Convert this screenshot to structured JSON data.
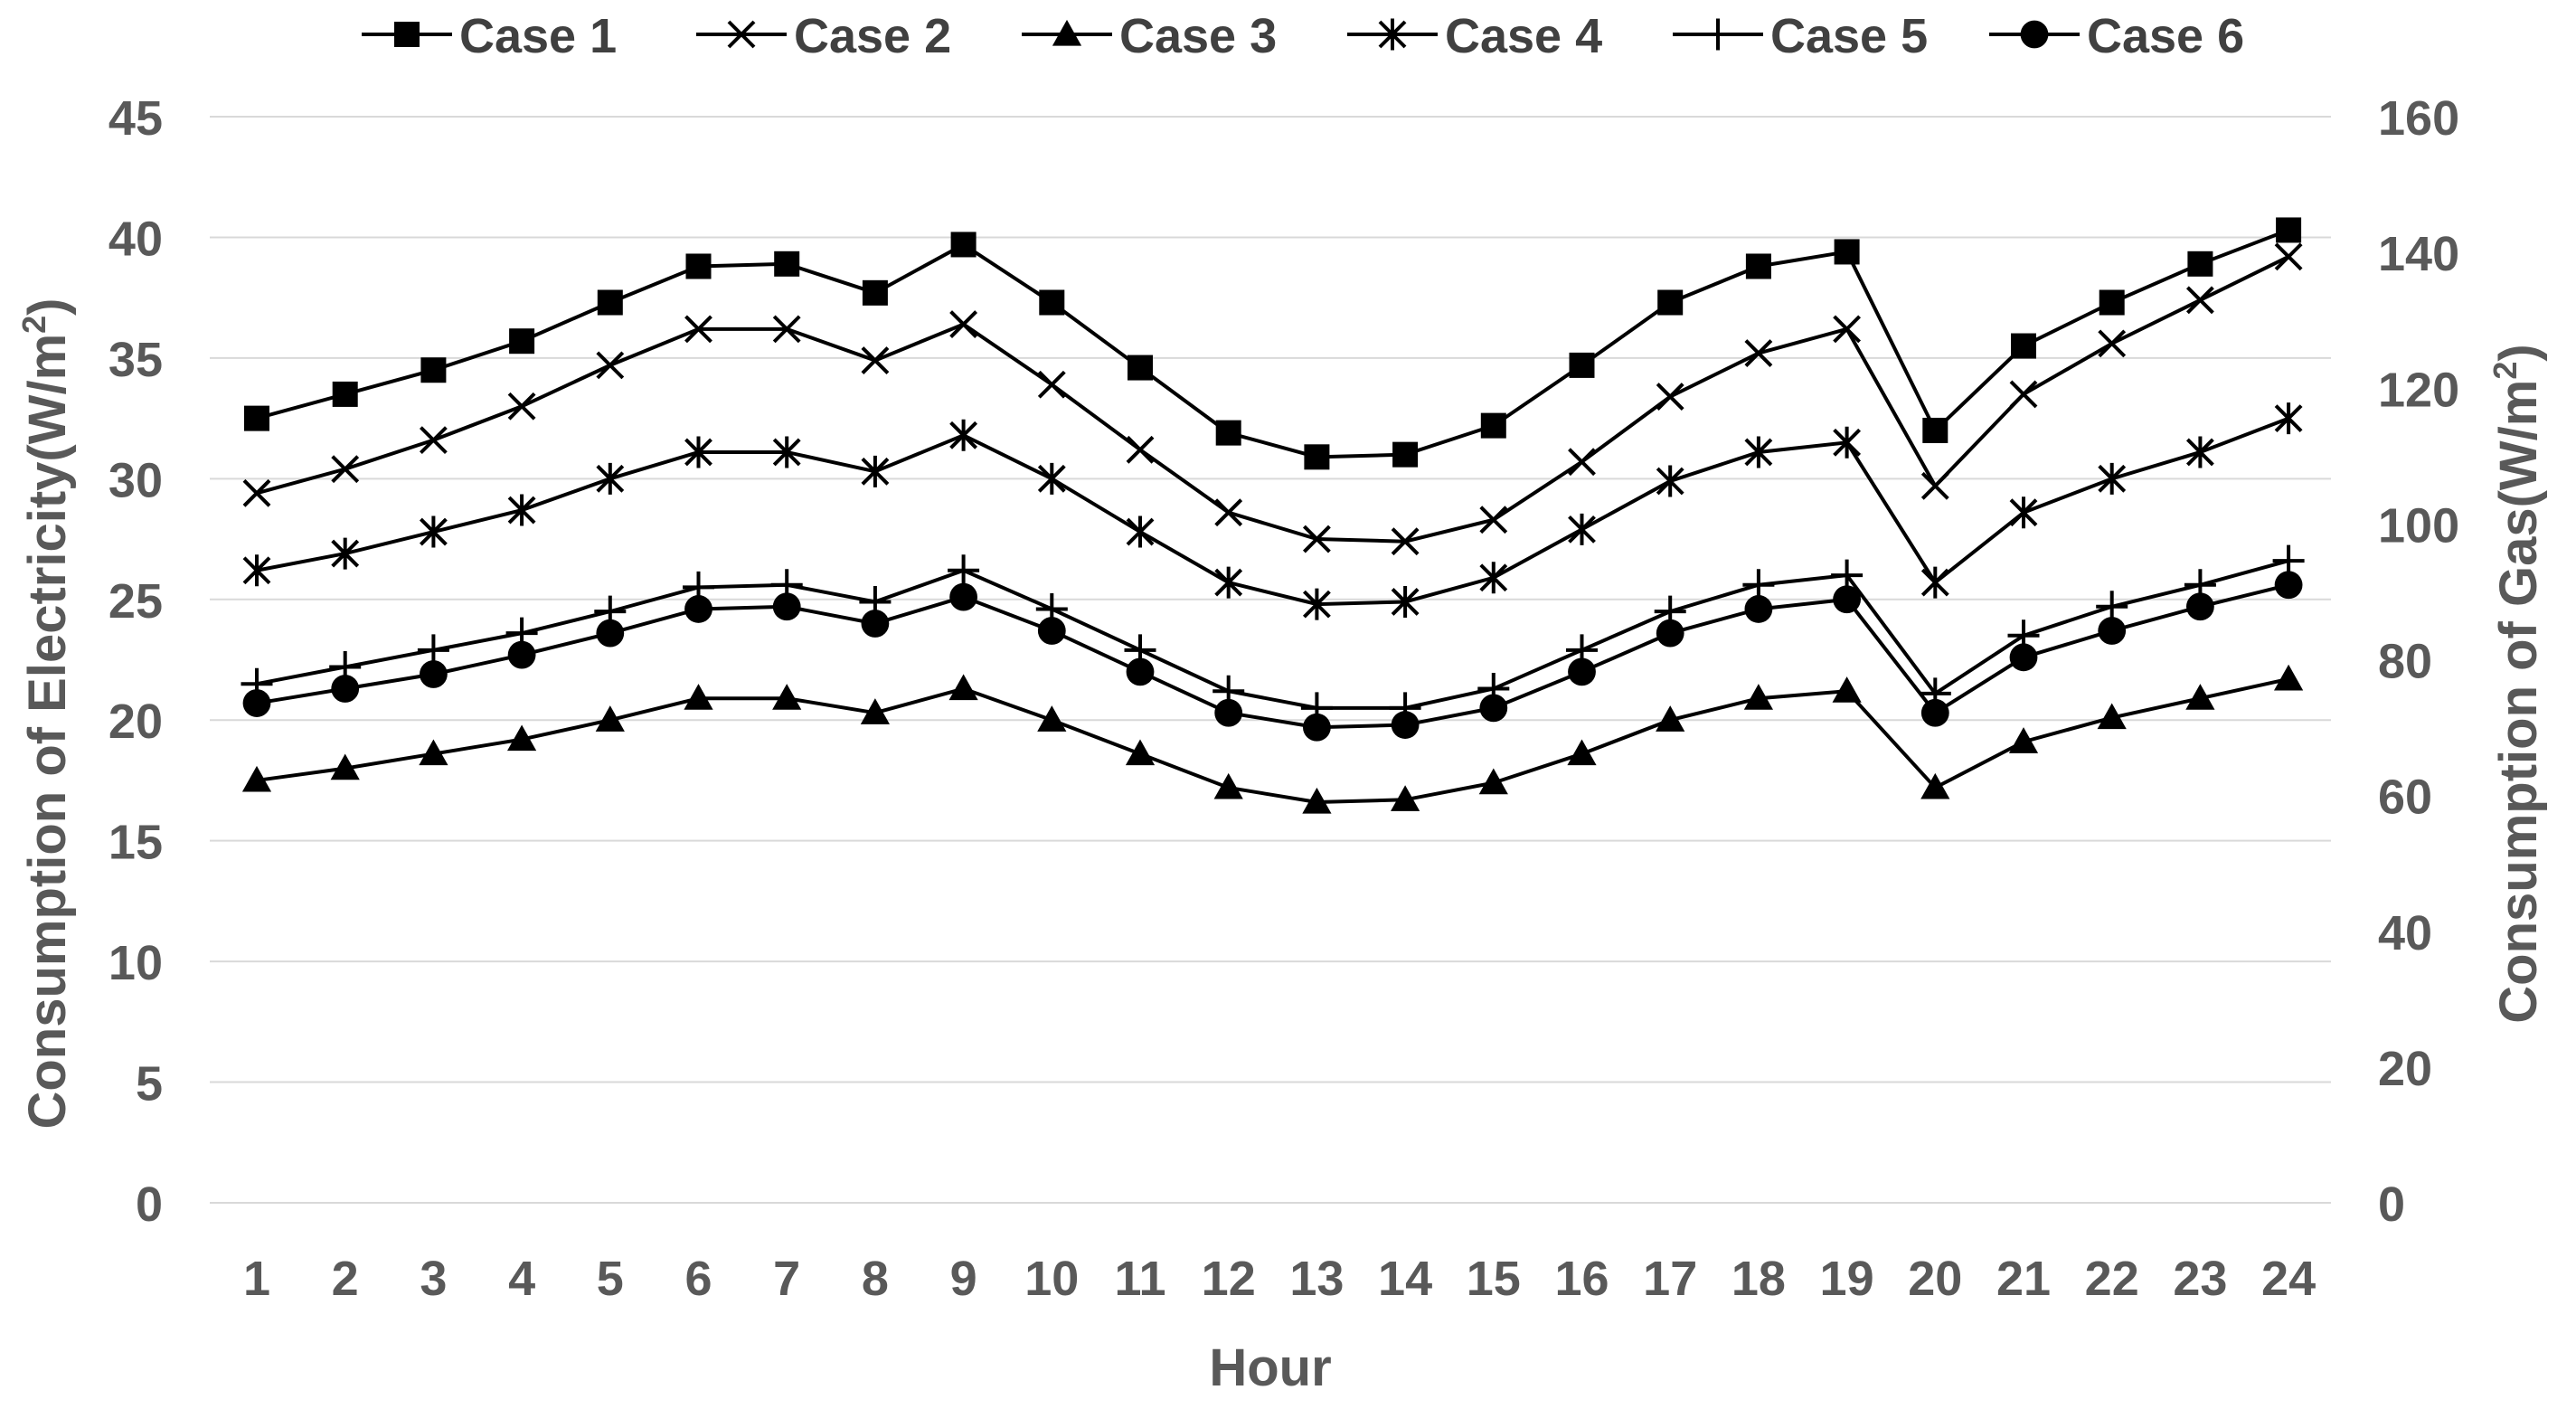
{
  "chart_data": {
    "type": "line",
    "title": "",
    "xlabel": "Hour",
    "ylabel_left": "Consumption of Electricity(W/m",
    "ylabel_left_sup": "2",
    "ylabel_left_tail": ")",
    "ylabel_right": "Consumption of Gas(W/m",
    "ylabel_right_sup": "2",
    "ylabel_right_tail": ")",
    "x": [
      1,
      2,
      3,
      4,
      5,
      6,
      7,
      8,
      9,
      10,
      11,
      12,
      13,
      14,
      15,
      16,
      17,
      18,
      19,
      20,
      21,
      22,
      23,
      24
    ],
    "y_left_lim": [
      0,
      45
    ],
    "y_left_ticks": [
      0,
      5,
      10,
      15,
      20,
      25,
      30,
      35,
      40,
      45
    ],
    "y_right_lim": [
      0,
      160
    ],
    "y_right_ticks": [
      0,
      20,
      40,
      60,
      80,
      100,
      120,
      140,
      160
    ],
    "grid": true,
    "legend_position": "top",
    "series": [
      {
        "name": "Case 1",
        "marker": "square",
        "values": [
          32.5,
          33.5,
          34.5,
          35.7,
          37.3,
          38.8,
          38.9,
          37.7,
          39.7,
          37.3,
          34.6,
          31.9,
          30.9,
          31.0,
          32.2,
          34.7,
          37.3,
          38.8,
          39.4,
          32.0,
          35.5,
          37.3,
          38.9,
          40.3
        ]
      },
      {
        "name": "Case 2",
        "marker": "x",
        "values": [
          29.4,
          30.4,
          31.6,
          33.0,
          34.7,
          36.2,
          36.2,
          34.9,
          36.4,
          33.9,
          31.2,
          28.6,
          27.5,
          27.4,
          28.3,
          30.7,
          33.4,
          35.2,
          36.2,
          29.7,
          33.5,
          35.6,
          37.4,
          39.2
        ]
      },
      {
        "name": "Case 3",
        "marker": "triangle",
        "values": [
          17.5,
          18.0,
          18.6,
          19.2,
          20.0,
          20.9,
          20.9,
          20.3,
          21.3,
          20.0,
          18.6,
          17.2,
          16.6,
          16.7,
          17.4,
          18.6,
          20.0,
          20.9,
          21.2,
          17.2,
          19.1,
          20.1,
          20.9,
          21.7
        ]
      },
      {
        "name": "Case 4",
        "marker": "asterisk",
        "values": [
          26.2,
          26.9,
          27.8,
          28.7,
          30.0,
          31.1,
          31.1,
          30.3,
          31.8,
          30.0,
          27.8,
          25.7,
          24.8,
          24.9,
          25.9,
          27.9,
          29.9,
          31.1,
          31.5,
          25.7,
          28.6,
          30.0,
          31.1,
          32.5
        ]
      },
      {
        "name": "Case 5",
        "marker": "plus",
        "values": [
          21.5,
          22.2,
          22.9,
          23.6,
          24.5,
          25.5,
          25.6,
          24.9,
          26.2,
          24.6,
          22.9,
          21.2,
          20.5,
          20.5,
          21.3,
          22.9,
          24.5,
          25.6,
          26.0,
          21.1,
          23.5,
          24.7,
          25.6,
          26.6
        ]
      },
      {
        "name": "Case 6",
        "marker": "circle",
        "values": [
          20.7,
          21.3,
          21.9,
          22.7,
          23.6,
          24.6,
          24.7,
          24.0,
          25.1,
          23.7,
          22.0,
          20.3,
          19.7,
          19.8,
          20.5,
          22.0,
          23.6,
          24.6,
          25.0,
          20.3,
          22.6,
          23.7,
          24.7,
          25.6
        ]
      }
    ]
  }
}
